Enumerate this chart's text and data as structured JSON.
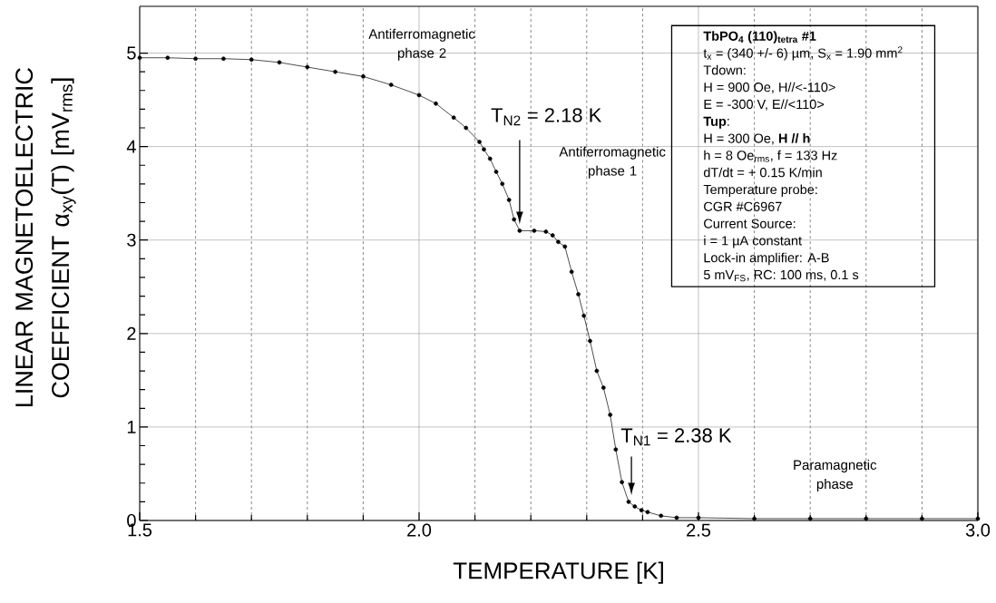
{
  "chart_data": {
    "type": "line",
    "xlabel": "TEMPERATURE  [K]",
    "ylabel": "LINEAR MAGNETOELECTRIC COEFFICIENT α$_{xy}$(T)  [mV$_{rms}$]",
    "x": [
      1.5,
      1.55,
      1.6,
      1.65,
      1.7,
      1.75,
      1.8,
      1.85,
      1.9,
      1.95,
      2.0,
      2.03,
      2.062,
      2.084,
      2.108,
      2.116,
      2.127,
      2.138,
      2.149,
      2.161,
      2.17,
      2.18,
      2.206,
      2.227,
      2.239,
      2.249,
      2.261,
      2.273,
      2.285,
      2.295,
      2.306,
      2.318,
      2.33,
      2.342,
      2.352,
      2.363,
      2.375,
      2.386,
      2.398,
      2.409,
      2.433,
      2.461,
      2.5,
      2.6,
      2.7,
      2.8,
      2.9,
      3.0
    ],
    "values": [
      4.95,
      4.95,
      4.94,
      4.94,
      4.93,
      4.9,
      4.85,
      4.8,
      4.75,
      4.66,
      4.55,
      4.46,
      4.31,
      4.2,
      4.05,
      3.97,
      3.87,
      3.73,
      3.6,
      3.43,
      3.22,
      3.1,
      3.1,
      3.09,
      3.05,
      2.98,
      2.93,
      2.66,
      2.42,
      2.19,
      1.92,
      1.6,
      1.42,
      1.13,
      0.76,
      0.41,
      0.2,
      0.15,
      0.11,
      0.09,
      0.05,
      0.03,
      0.03,
      0.02,
      0.02,
      0.02,
      0.02,
      0.02
    ],
    "color": "#000000",
    "marker": "circle",
    "line_style": "solid",
    "grid": true,
    "xlim": [
      1.5,
      3.0
    ],
    "ylim": [
      0,
      5.5
    ],
    "xticks": [
      {
        "value": 1.5,
        "label": "1.5"
      },
      {
        "value": 2.0,
        "label": "2.0"
      },
      {
        "value": 2.5,
        "label": "2.5"
      },
      {
        "value": 3.0,
        "label": "3.0"
      }
    ],
    "yticks": [
      0,
      1,
      2,
      3,
      4,
      5
    ],
    "annotations": [
      "Antiferromagnetic phase 2",
      "T$_{N2}$ = 2.18 K",
      "Antiferromagnetic phase 1",
      {
        "text": "T$_{N1}$ = 2.38 K",
        "x": 2.38,
        "y": 0.2
      },
      "Paramagnetic phase",
      "TbPO$_{4}$  (110)$_{tetra}$  #1",
      "t$_{x}$ = (340 +/- 6) µm, S$_{x}$ = 1.90 mm$^{2}$",
      "Tdown:",
      "H = 900 Oe, H//<-110>",
      "E = -300 V, E//<110>",
      "**Tup**:",
      "H = 300 Oe,  **H // h**",
      "h = 8 Oe$_{rms}$, f = 133 Hz",
      "dT/dt = + 0.15 K/min",
      "Temperature probe:",
      "CGR #C6967",
      "Current Source:",
      "i = 1 µA constant",
      "Lock-in amplifier: A-B",
      "5 mV$_{FS}$, RC: 100 ms, 0.1 s"
    ]
  }
}
